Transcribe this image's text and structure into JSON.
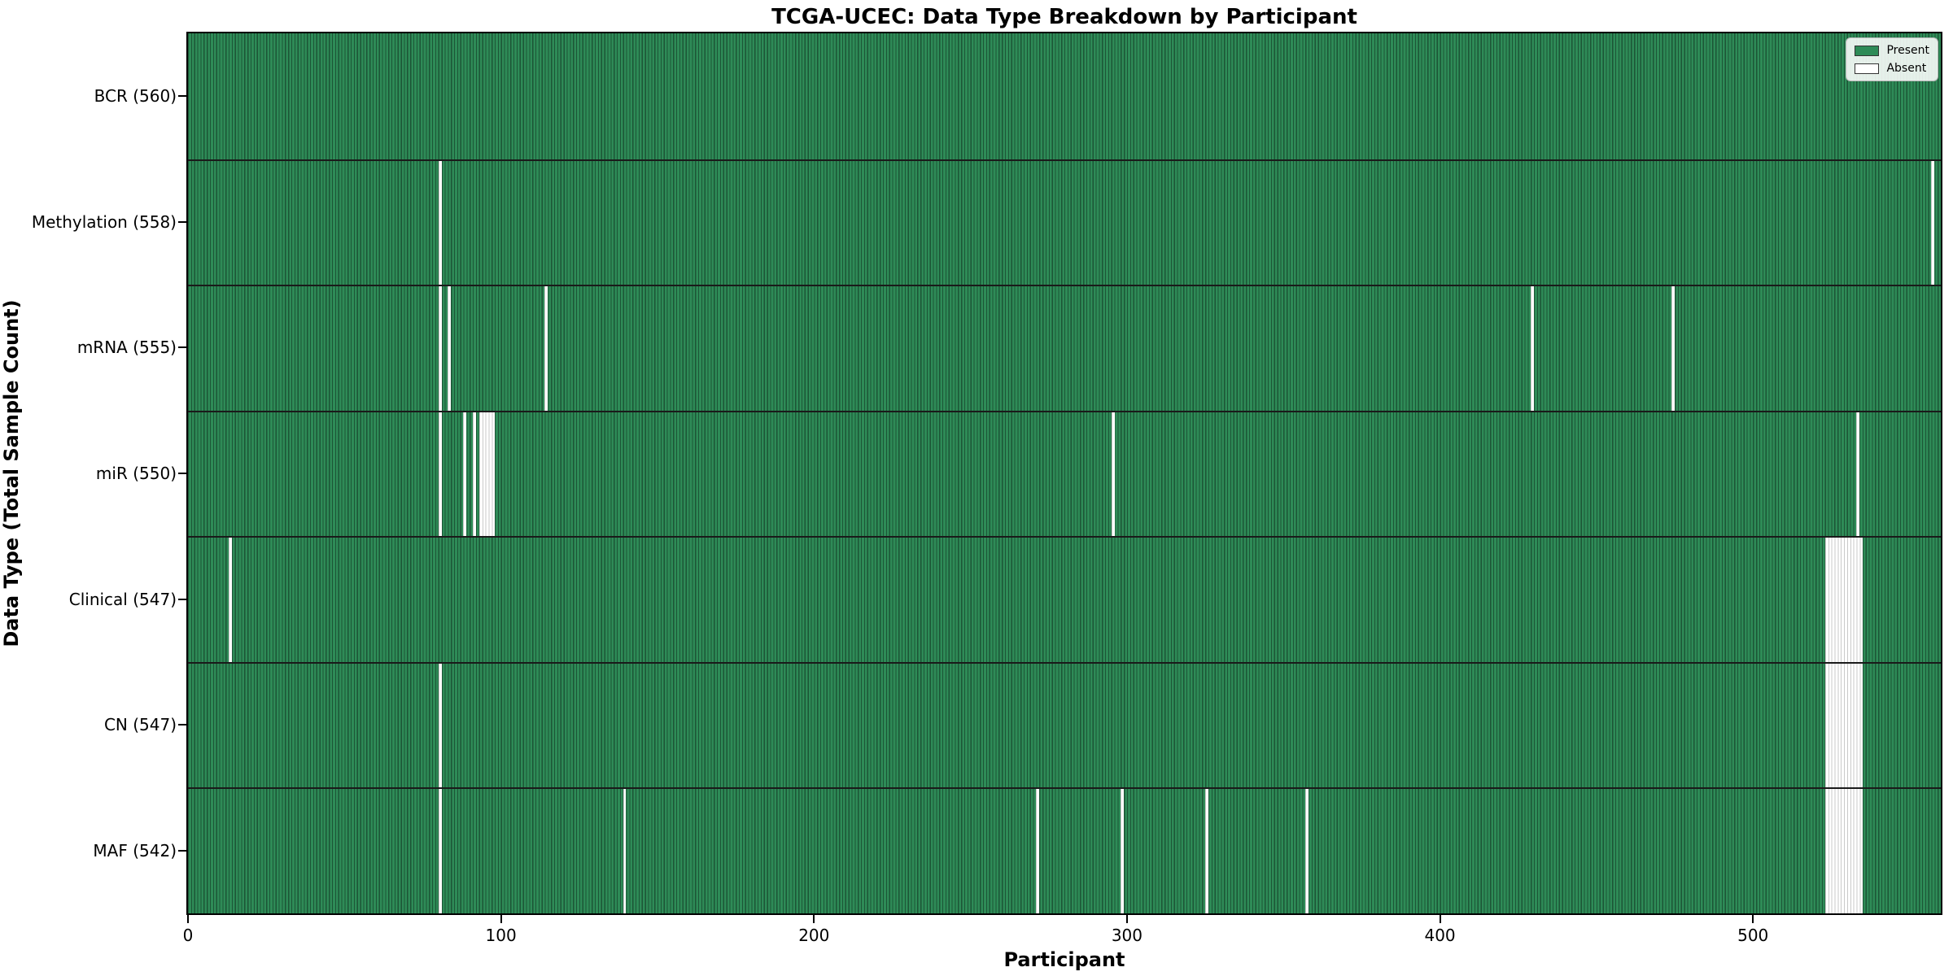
{
  "chart_data": {
    "type": "heatmap",
    "title": "TCGA-UCEC: Data Type Breakdown by Participant",
    "xlabel": "Participant",
    "ylabel": "Data Type (Total Sample Count)",
    "x_ticks": [
      0,
      100,
      200,
      300,
      400,
      500
    ],
    "xlim": [
      0,
      560
    ],
    "n_participants": 560,
    "grid": false,
    "legend_position": "upper right",
    "present_color": "#2e8b57",
    "present_edge_color": "#1c5536",
    "absent_color": "#ffffff",
    "absent_edge_color": "#c9c9c9",
    "row_separator_color": "#1a1a1a",
    "rows": [
      {
        "label": "BCR (560)",
        "count": 560,
        "absent": []
      },
      {
        "label": "Methylation (558)",
        "count": 558,
        "absent": [
          80,
          557
        ]
      },
      {
        "label": "mRNA (555)",
        "count": 555,
        "absent": [
          80,
          83,
          114,
          429,
          474
        ]
      },
      {
        "label": "miR (550)",
        "count": 550,
        "absent": [
          80,
          88,
          91,
          [
            93,
            97
          ],
          295,
          533
        ]
      },
      {
        "label": "Clinical (547)",
        "count": 547,
        "absent": [
          13,
          [
            523,
            534
          ]
        ]
      },
      {
        "label": "CN (547)",
        "count": 547,
        "absent": [
          80,
          [
            523,
            534
          ]
        ]
      },
      {
        "label": "MAF (542)",
        "count": 542,
        "absent": [
          80,
          139,
          271,
          298,
          325,
          357,
          [
            523,
            534
          ]
        ]
      }
    ],
    "legend": [
      {
        "label": "Present",
        "color": "#2e8b57",
        "edge": "#333333"
      },
      {
        "label": "Absent",
        "color": "#ffffff",
        "edge": "#333333"
      }
    ]
  }
}
